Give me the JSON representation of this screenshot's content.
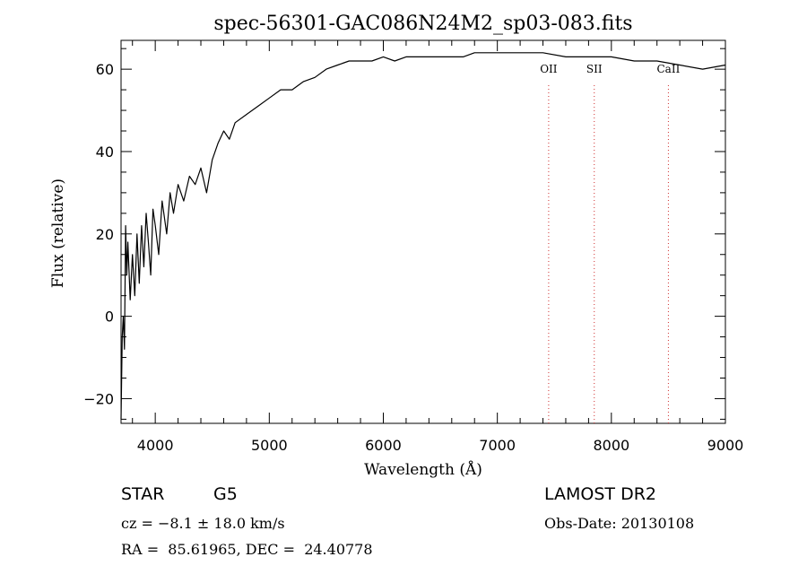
{
  "chart_data": {
    "type": "line",
    "title": "spec-56301-GAC086N24M2_sp03-083.fits",
    "xlabel": "Wavelength (Å)",
    "ylabel": "Flux (relative)",
    "xlim": [
      3700,
      9000
    ],
    "ylim": [
      -26,
      67
    ],
    "x_ticks": [
      4000,
      5000,
      6000,
      7000,
      8000,
      9000
    ],
    "y_ticks": [
      -20,
      0,
      20,
      40,
      60
    ],
    "grid": false,
    "series": [
      {
        "x": [
          3700,
          3710,
          3720,
          3730,
          3740,
          3750,
          3760,
          3780,
          3800,
          3820,
          3840,
          3860,
          3880,
          3900,
          3920,
          3940,
          3960,
          3980,
          4000,
          4030,
          4060,
          4100,
          4130,
          4160,
          4200,
          4250,
          4300,
          4350,
          4400,
          4450,
          4500,
          4550,
          4600,
          4650,
          4700,
          4800,
          4900,
          5000,
          5100,
          5200,
          5300,
          5400,
          5500,
          5600,
          5700,
          5800,
          5900,
          6000,
          6100,
          6200,
          6300,
          6400,
          6500,
          6600,
          6700,
          6800,
          6900,
          7000,
          7200,
          7400,
          7600,
          7800,
          8000,
          8200,
          8400,
          8600,
          8800,
          9000
        ],
        "y": [
          -25,
          -5,
          0,
          -8,
          22,
          10,
          18,
          4,
          15,
          5,
          20,
          8,
          22,
          12,
          25,
          18,
          10,
          26,
          22,
          15,
          28,
          20,
          30,
          25,
          32,
          28,
          34,
          32,
          36,
          30,
          38,
          42,
          45,
          43,
          47,
          49,
          51,
          53,
          55,
          55,
          57,
          58,
          60,
          61,
          62,
          62,
          62,
          63,
          62,
          63,
          63,
          63,
          63,
          63,
          63,
          64,
          64,
          64,
          64,
          64,
          63,
          63,
          63,
          62,
          62,
          61,
          60,
          61
        ]
      }
    ],
    "lines": [
      {
        "label": "OII",
        "x": 7450
      },
      {
        "label": "SII",
        "x": 7850
      },
      {
        "label": "CaII",
        "x": 8500
      }
    ]
  },
  "info": {
    "object_class": "STAR",
    "subclass": "G5",
    "survey": "LAMOST DR2",
    "cz": "cz = −8.1 ± 18.0 km/s",
    "obs_date": "Obs-Date: 20130108",
    "coords": "RA =  85.61965, DEC =  24.40778"
  }
}
